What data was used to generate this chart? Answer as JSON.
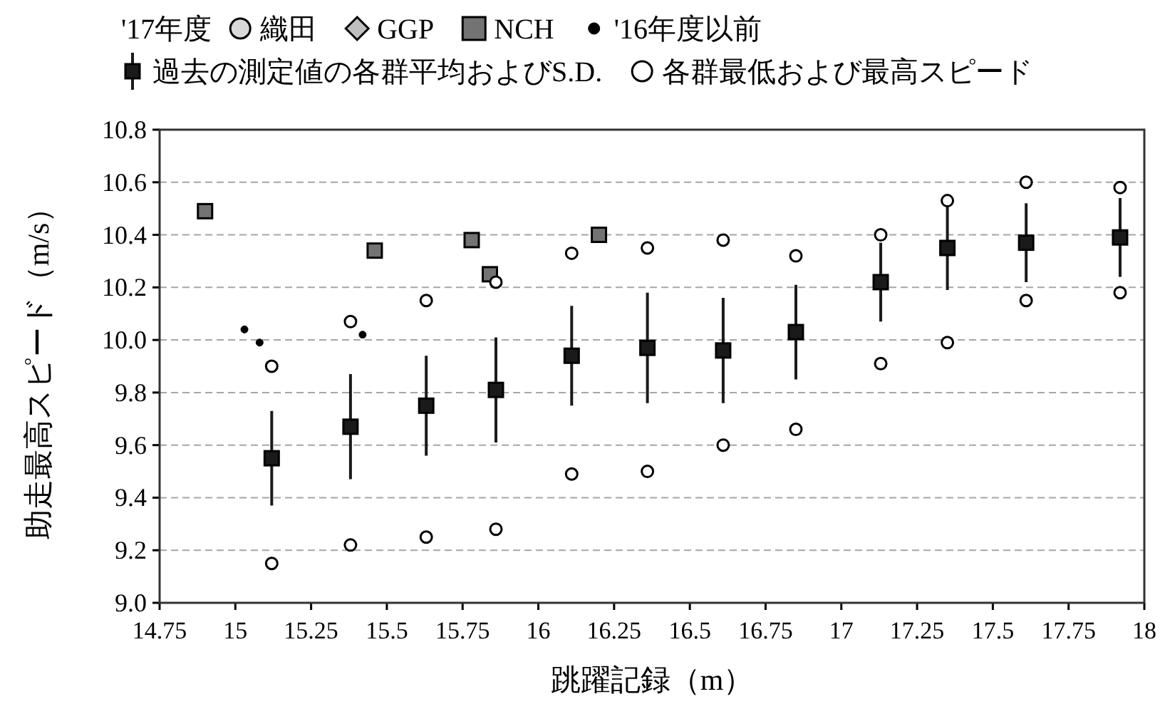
{
  "chart_data": {
    "type": "scatter",
    "xlabel": "跳躍記録（m）",
    "ylabel": "助走最高スピード（m/s）",
    "legend_title": "'17年度",
    "legend": "top",
    "grid": "y",
    "xlim": [
      14.75,
      18
    ],
    "xticks": [
      14.75,
      15,
      15.25,
      15.5,
      15.75,
      16,
      16.25,
      16.5,
      16.75,
      17,
      17.25,
      17.5,
      17.75,
      18
    ],
    "ylim": [
      9,
      10.8
    ],
    "yticks": [
      {
        "value": 9,
        "label": "9.0"
      },
      9.2,
      9.4,
      9.6,
      9.8,
      {
        "value": 10,
        "label": "10.0"
      },
      10.2,
      10.4,
      10.6,
      10.8
    ],
    "series": [
      {
        "name": "織田",
        "color": "#d9d9d9",
        "marker": "circle"
      },
      {
        "name": "GGP",
        "color": "#bfbfbf",
        "marker": "diamond"
      },
      {
        "name": "NCH",
        "color": "#737373",
        "marker": "square",
        "x": [
          14.9,
          15.46,
          15.78,
          15.84,
          16.2
        ],
        "values": [
          10.49,
          10.34,
          10.38,
          10.25,
          10.4
        ]
      },
      {
        "name": "'16年度以前",
        "color": "#000000",
        "marker": "circle",
        "x": [
          15.03,
          15.08,
          15.42
        ],
        "values": [
          10.04,
          9.99,
          10.02
        ]
      },
      {
        "name": "過去の測定値の各群平均およびS.D.",
        "color": "#1a1a1a",
        "marker": "square",
        "x": [
          15.12,
          15.38,
          15.63,
          15.86,
          16.11,
          16.36,
          16.61,
          16.85,
          17.13,
          17.35,
          17.61,
          17.92
        ],
        "values": [
          9.55,
          9.67,
          9.75,
          9.81,
          9.94,
          9.97,
          9.96,
          10.03,
          10.22,
          10.35,
          10.37,
          10.39
        ],
        "errors": [
          0.18,
          0.2,
          0.19,
          0.2,
          0.19,
          0.21,
          0.2,
          0.18,
          0.15,
          0.16,
          0.15,
          0.15
        ]
      },
      {
        "name": "各群最低および最高スピード",
        "color": "#ffffff",
        "marker": "circle",
        "x": [
          15.12,
          15.12,
          15.38,
          15.38,
          15.63,
          15.63,
          15.86,
          15.86,
          16.11,
          16.11,
          16.36,
          16.36,
          16.61,
          16.61,
          16.85,
          16.85,
          17.13,
          17.13,
          17.35,
          17.35,
          17.61,
          17.61,
          17.92,
          17.92
        ],
        "values": [
          9.9,
          9.15,
          10.07,
          9.22,
          10.15,
          9.25,
          10.22,
          9.28,
          10.33,
          9.49,
          10.35,
          9.5,
          10.38,
          9.6,
          10.32,
          9.66,
          10.4,
          9.91,
          10.53,
          9.99,
          10.6,
          10.15,
          10.58,
          10.18
        ]
      }
    ]
  }
}
